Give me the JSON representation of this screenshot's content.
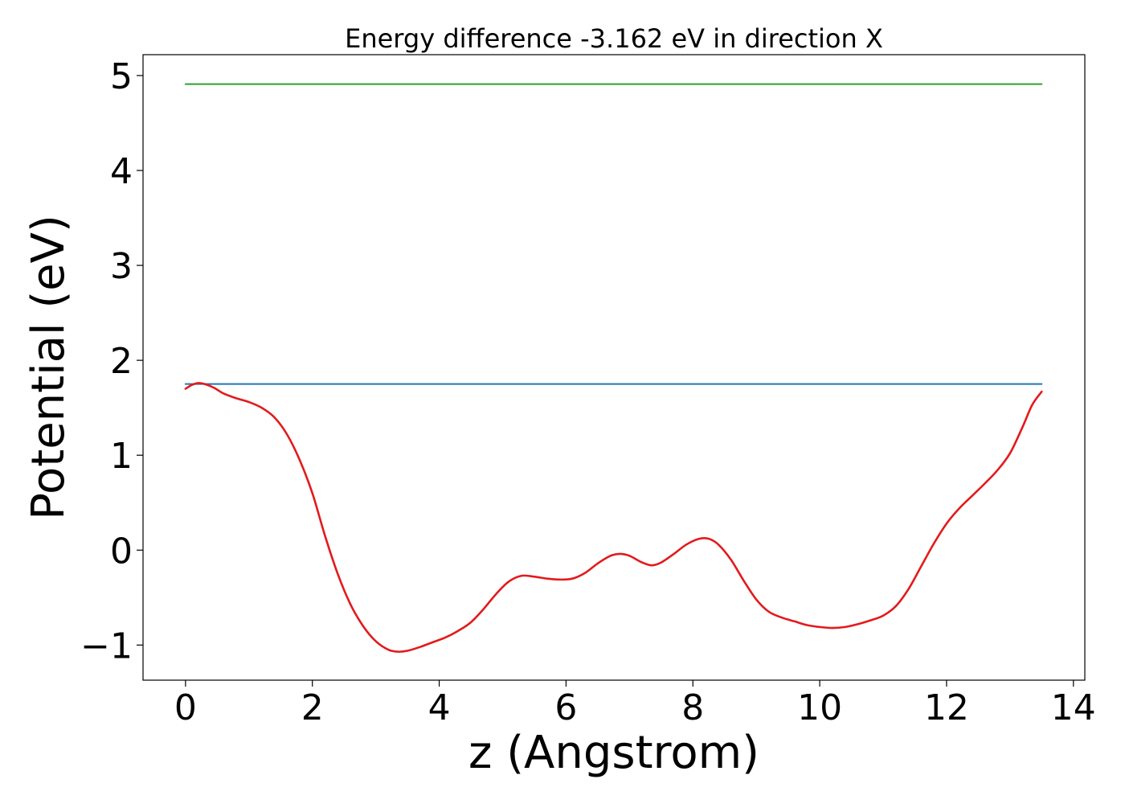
{
  "chart_data": {
    "type": "line",
    "title": "Energy difference -3.162 eV in direction X",
    "xlabel": "z (Angstrom)",
    "ylabel": "Potential (eV)",
    "xlim": [
      -0.67,
      14.18
    ],
    "ylim": [
      -1.37,
      5.22
    ],
    "x_ticks": [
      0,
      2,
      4,
      6,
      8,
      10,
      12,
      14
    ],
    "x_tick_labels": [
      "0",
      "2",
      "4",
      "6",
      "8",
      "10",
      "12",
      "14"
    ],
    "y_ticks": [
      -1,
      0,
      1,
      2,
      3,
      4,
      5
    ],
    "y_tick_labels": [
      "−1",
      "0",
      "1",
      "2",
      "3",
      "4",
      "5"
    ],
    "grid": false,
    "legend": "none",
    "series": [
      {
        "color": "#2ca02c",
        "style": "constant",
        "x": [
          0,
          13.5
        ],
        "y": [
          4.91,
          4.91
        ]
      },
      {
        "color": "#1f77b4",
        "style": "constant",
        "x": [
          0,
          13.5
        ],
        "y": [
          1.75,
          1.75
        ]
      },
      {
        "color": "#e31a1c",
        "style": "curve",
        "x": [
          0,
          0.1,
          0.2,
          0.3,
          0.45,
          0.6,
          0.8,
          1.0,
          1.2,
          1.4,
          1.6,
          1.8,
          2.0,
          2.2,
          2.4,
          2.6,
          2.8,
          3.0,
          3.2,
          3.35,
          3.5,
          3.7,
          3.9,
          4.1,
          4.3,
          4.5,
          4.7,
          4.9,
          5.1,
          5.3,
          5.5,
          5.7,
          5.9,
          6.1,
          6.3,
          6.5,
          6.7,
          6.85,
          7.0,
          7.2,
          7.35,
          7.5,
          7.7,
          7.9,
          8.1,
          8.25,
          8.4,
          8.6,
          8.8,
          9.0,
          9.2,
          9.4,
          9.6,
          9.8,
          10.0,
          10.2,
          10.4,
          10.6,
          10.8,
          11.0,
          11.2,
          11.4,
          11.6,
          11.8,
          12.0,
          12.2,
          12.4,
          12.6,
          12.8,
          13.0,
          13.2,
          13.35,
          13.5
        ],
        "y": [
          1.7,
          1.74,
          1.76,
          1.75,
          1.71,
          1.65,
          1.6,
          1.56,
          1.5,
          1.4,
          1.22,
          0.95,
          0.6,
          0.15,
          -0.25,
          -0.57,
          -0.8,
          -0.96,
          -1.05,
          -1.07,
          -1.06,
          -1.02,
          -0.97,
          -0.92,
          -0.85,
          -0.76,
          -0.62,
          -0.46,
          -0.33,
          -0.27,
          -0.28,
          -0.3,
          -0.31,
          -0.3,
          -0.24,
          -0.14,
          -0.06,
          -0.04,
          -0.06,
          -0.13,
          -0.16,
          -0.13,
          -0.04,
          0.06,
          0.12,
          0.12,
          0.06,
          -0.1,
          -0.32,
          -0.52,
          -0.65,
          -0.71,
          -0.75,
          -0.79,
          -0.81,
          -0.82,
          -0.81,
          -0.78,
          -0.74,
          -0.69,
          -0.59,
          -0.41,
          -0.17,
          0.07,
          0.28,
          0.44,
          0.57,
          0.7,
          0.84,
          1.02,
          1.3,
          1.53,
          1.67
        ]
      }
    ]
  }
}
